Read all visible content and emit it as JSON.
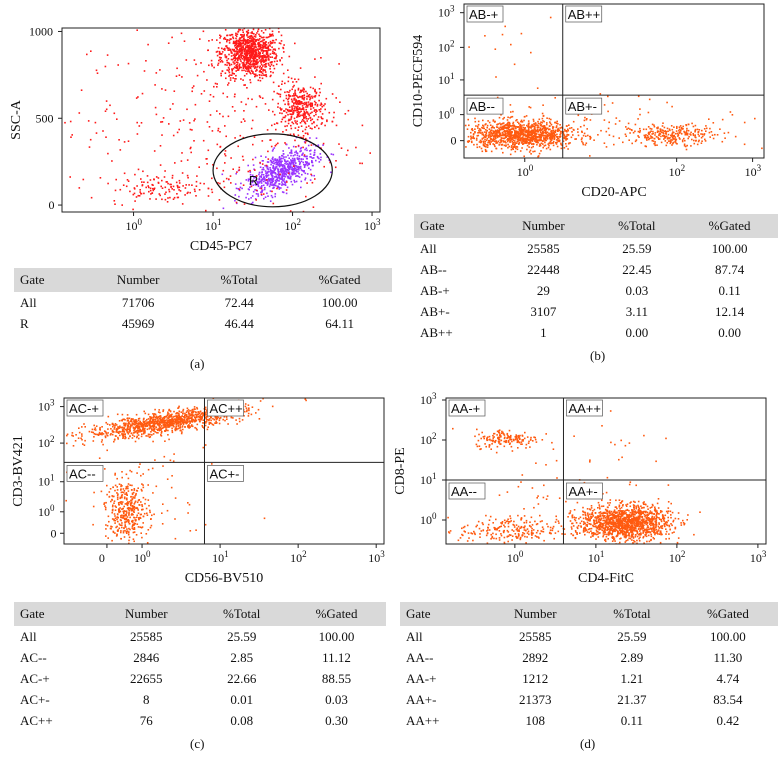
{
  "colors": {
    "panel_a_dots": "#ff1a1a",
    "panel_a_gate_dots": "#9933ff",
    "orange_dots": "#ff5a10",
    "table_header_bg": "#d9d9d9",
    "frame": "#222222"
  },
  "chart_data": [
    {
      "id": "a",
      "type": "scatter",
      "panel_label": "(a)",
      "xlabel": "CD45-PC7",
      "ylabel": "SSC-A",
      "x_scale": "log",
      "y_scale": "linear",
      "xlim_log10": [
        -0.9,
        3.1
      ],
      "ylim": [
        -40,
        1020
      ],
      "x_ticks": [
        {
          "label": "10",
          "exp": "0",
          "v": 0
        },
        {
          "label": "10",
          "exp": "1",
          "v": 1
        },
        {
          "label": "10",
          "exp": "2",
          "v": 2
        },
        {
          "label": "10",
          "exp": "3",
          "v": 3
        }
      ],
      "y_ticks": [
        {
          "label": "0",
          "v": 0
        },
        {
          "label": "500",
          "v": 500
        },
        {
          "label": "1000",
          "v": 1000
        }
      ],
      "clusters": [
        {
          "name": "granulocytes",
          "cx_log": 1.45,
          "cy": 880,
          "sx_log": 0.18,
          "sy": 70,
          "n": 900,
          "gated": false
        },
        {
          "name": "monocytes",
          "cx_log": 2.1,
          "cy": 560,
          "sx_log": 0.15,
          "sy": 70,
          "n": 350,
          "gated": false
        },
        {
          "name": "lymphocytes-R",
          "cx_log": 1.85,
          "cy": 200,
          "sx_log": 0.22,
          "sy": 55,
          "n": 650,
          "gated": true
        },
        {
          "name": "debris",
          "cx_log": 0.3,
          "cy": 100,
          "sx_log": 0.3,
          "sy": 40,
          "n": 110,
          "gated": false
        },
        {
          "name": "scatter-bg",
          "cx_log": 1.0,
          "cy": 450,
          "sx_log": 0.9,
          "sy": 320,
          "n": 380,
          "gated": false
        }
      ],
      "gate": {
        "name": "R",
        "shape": "ellipse",
        "cx_log": 1.75,
        "cy": 200,
        "rx_log": 0.75,
        "ry": 210
      },
      "quadrant_labels": [
        {
          "text": "R",
          "x_log": 1.45,
          "y": 115
        }
      ],
      "table": {
        "headers": [
          "Gate",
          "Number",
          "%Total",
          "%Gated"
        ],
        "rows": [
          [
            "All",
            "71706",
            "72.44",
            "100.00"
          ],
          [
            "R",
            "45969",
            "46.44",
            "64.11"
          ]
        ]
      }
    },
    {
      "id": "b",
      "type": "scatter",
      "panel_label": "(b)",
      "xlabel": "CD20-APC",
      "ylabel": "CD10-PECF594",
      "x_scale": "log",
      "y_scale": "log",
      "xlim_log10": [
        -0.8,
        3.15
      ],
      "ylim_log10": [
        -0.5,
        3.05
      ],
      "x_ticks": [
        {
          "label": "10",
          "exp": "0",
          "v": 0
        },
        {
          "label": "10",
          "exp": "2",
          "v": 2
        },
        {
          "label": "10",
          "exp": "3",
          "v": 3
        }
      ],
      "y_ticks": [
        {
          "label": "0",
          "exp": "",
          "v": -0.1
        },
        {
          "label": "10",
          "exp": "0",
          "v": 0.5
        },
        {
          "label": "10",
          "exp": "1",
          "v": 1.3
        },
        {
          "label": "10",
          "exp": "2",
          "v": 2.05
        },
        {
          "label": "10",
          "exp": "3",
          "v": 2.85
        }
      ],
      "quadrant_x": 0.5,
      "quadrant_y": 0.95,
      "clusters": [
        {
          "name": "AB--",
          "cx": -0.05,
          "cy": 0.05,
          "sx": 0.35,
          "sy": 0.16,
          "n": 1100
        },
        {
          "name": "AB+-",
          "cx": 1.95,
          "cy": 0.05,
          "sx": 0.28,
          "sy": 0.11,
          "n": 260
        },
        {
          "name": "AB-+",
          "cx": -0.2,
          "cy": 2.2,
          "sx": 0.3,
          "sy": 0.3,
          "n": 12
        },
        {
          "name": "bg",
          "cx": 1.0,
          "cy": 0.3,
          "sx": 1.0,
          "sy": 0.35,
          "n": 120
        }
      ],
      "quadrant_labels": [
        "AB-+",
        "AB++",
        "AB--",
        "AB+-"
      ],
      "table": {
        "headers": [
          "Gate",
          "Number",
          "%Total",
          "%Gated"
        ],
        "rows": [
          [
            "All",
            "25585",
            "25.59",
            "100.00"
          ],
          [
            "AB--",
            "22448",
            "22.45",
            "87.74"
          ],
          [
            "AB-+",
            "29",
            "0.03",
            "0.11"
          ],
          [
            "AB+-",
            "3107",
            "3.11",
            "12.14"
          ],
          [
            "AB++",
            "1",
            "0.00",
            "0.00"
          ]
        ]
      }
    },
    {
      "id": "c",
      "type": "scatter",
      "panel_label": "(c)",
      "xlabel": "CD56-BV510",
      "ylabel": "CD3-BV421",
      "x_scale": "log",
      "y_scale": "log",
      "xlim_log10": [
        -1.0,
        3.1
      ],
      "ylim_log10": [
        -0.35,
        3.05
      ],
      "x_ticks": [
        {
          "label": "0",
          "exp": "",
          "v": -0.45
        },
        {
          "label": "10",
          "exp": "0",
          "v": 0
        },
        {
          "label": "10",
          "exp": "1",
          "v": 1
        },
        {
          "label": "10",
          "exp": "2",
          "v": 2
        },
        {
          "label": "10",
          "exp": "3",
          "v": 3
        }
      ],
      "y_ticks": [
        {
          "label": "0",
          "exp": "",
          "v": -0.1
        },
        {
          "label": "10",
          "exp": "0",
          "v": 0.4
        },
        {
          "label": "10",
          "exp": "1",
          "v": 1.1
        },
        {
          "label": "10",
          "exp": "2",
          "v": 2.0
        },
        {
          "label": "10",
          "exp": "3",
          "v": 2.85
        }
      ],
      "quadrant_x": 0.8,
      "quadrant_y": 1.55,
      "clusters": [
        {
          "name": "AC-+",
          "cx": 0.3,
          "cy": 2.5,
          "sx": 0.5,
          "sy": 0.12,
          "n": 1100,
          "tilt": 0.28
        },
        {
          "name": "AC--",
          "cx": -0.2,
          "cy": 0.45,
          "sx": 0.14,
          "sy": 0.35,
          "n": 380
        },
        {
          "name": "bg",
          "cx": 0.2,
          "cy": 1.2,
          "sx": 0.5,
          "sy": 0.8,
          "n": 60
        }
      ],
      "quadrant_labels": [
        "AC-+",
        "AC++",
        "AC--",
        "AC+-"
      ],
      "table": {
        "headers": [
          "Gate",
          "Number",
          "%Total",
          "%Gated"
        ],
        "rows": [
          [
            "All",
            "25585",
            "25.59",
            "100.00"
          ],
          [
            "AC--",
            "2846",
            "2.85",
            "11.12"
          ],
          [
            "AC-+",
            "22655",
            "22.66",
            "88.55"
          ],
          [
            "AC+-",
            "8",
            "0.01",
            "0.03"
          ],
          [
            "AC++",
            "76",
            "0.08",
            "0.30"
          ]
        ]
      }
    },
    {
      "id": "d",
      "type": "scatter",
      "panel_label": "(d)",
      "xlabel": "CD4-FitC",
      "ylabel": "CD8-PE",
      "x_scale": "log",
      "y_scale": "log",
      "xlim_log10": [
        -0.85,
        3.1
      ],
      "ylim_log10": [
        -0.6,
        3.05
      ],
      "x_ticks": [
        {
          "label": "10",
          "exp": "0",
          "v": 0
        },
        {
          "label": "10",
          "exp": "1",
          "v": 1
        },
        {
          "label": "10",
          "exp": "2",
          "v": 2
        },
        {
          "label": "10",
          "exp": "3",
          "v": 3
        }
      ],
      "y_ticks": [
        {
          "label": "10",
          "exp": "0",
          "v": 0.0
        },
        {
          "label": "10",
          "exp": "1",
          "v": 1.0
        },
        {
          "label": "10",
          "exp": "2",
          "v": 2.0
        },
        {
          "label": "10",
          "exp": "3",
          "v": 3.0
        }
      ],
      "quadrant_x": 0.6,
      "quadrant_y": 1.0,
      "clusters": [
        {
          "name": "AA+-",
          "cx": 1.35,
          "cy": -0.05,
          "sx": 0.28,
          "sy": 0.22,
          "n": 1300
        },
        {
          "name": "AA--",
          "cx": -0.1,
          "cy": -0.25,
          "sx": 0.3,
          "sy": 0.18,
          "n": 220
        },
        {
          "name": "AA-+",
          "cx": -0.1,
          "cy": 2.05,
          "sx": 0.2,
          "sy": 0.12,
          "n": 160
        },
        {
          "name": "AA++",
          "cx": 1.3,
          "cy": 2.0,
          "sx": 0.25,
          "sy": 0.3,
          "n": 12
        },
        {
          "name": "bg",
          "cx": 0.5,
          "cy": 0.6,
          "sx": 0.7,
          "sy": 0.6,
          "n": 60
        }
      ],
      "quadrant_labels": [
        "AA-+",
        "AA++",
        "AA--",
        "AA+-"
      ],
      "table": {
        "headers": [
          "Gate",
          "Number",
          "%Total",
          "%Gated"
        ],
        "rows": [
          [
            "All",
            "25585",
            "25.59",
            "100.00"
          ],
          [
            "AA--",
            "2892",
            "2.89",
            "11.30"
          ],
          [
            "AA-+",
            "1212",
            "1.21",
            "4.74"
          ],
          [
            "AA+-",
            "21373",
            "21.37",
            "83.54"
          ],
          [
            "AA++",
            "108",
            "0.11",
            "0.42"
          ]
        ]
      }
    }
  ]
}
